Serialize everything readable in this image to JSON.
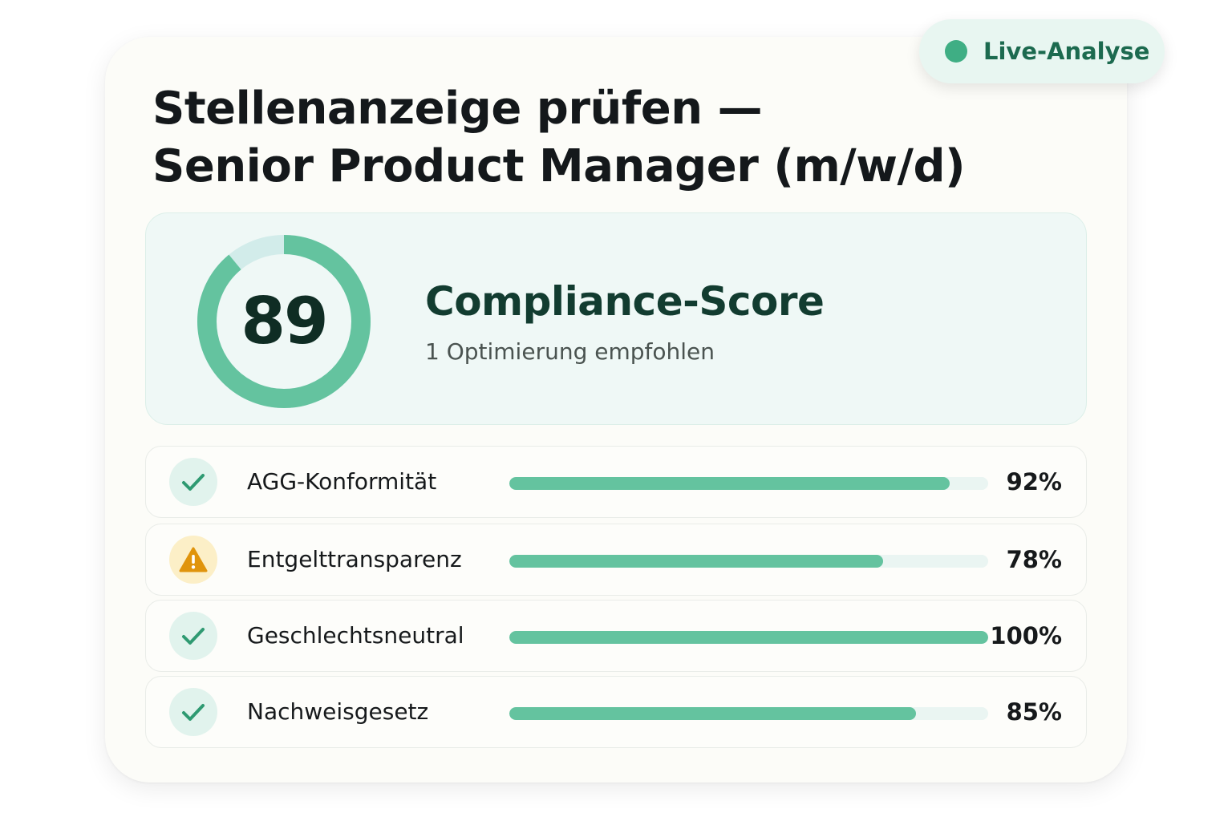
{
  "badge": {
    "label": "Live-Analyse",
    "dot_color": "#3fae84"
  },
  "header": {
    "title_line1": "Stellenanzeige prüfen —",
    "title_line2": "Senior Product Manager (m/w/d)"
  },
  "score": {
    "value": "89",
    "percent": 89,
    "title": "Compliance-Score",
    "subtitle": "1 Optimierung empfohlen",
    "ring_color": "#64c39f",
    "ring_track_color": "#d2ecea"
  },
  "criteria": [
    {
      "label": "AGG-Konformität",
      "percent": 92,
      "percent_text": "92%",
      "status": "ok",
      "icon": "check-icon"
    },
    {
      "label": "Entgelttransparenz",
      "percent": 78,
      "percent_text": "78%",
      "status": "warning",
      "icon": "warning-icon"
    },
    {
      "label": "Geschlechtsneutral",
      "percent": 100,
      "percent_text": "100%",
      "status": "ok",
      "icon": "check-icon"
    },
    {
      "label": "Nachweisgesetz",
      "percent": 85,
      "percent_text": "85%",
      "status": "ok",
      "icon": "check-icon"
    }
  ],
  "colors": {
    "accent": "#64c39f",
    "check": "#2f9a72",
    "warning": "#e0940c"
  }
}
